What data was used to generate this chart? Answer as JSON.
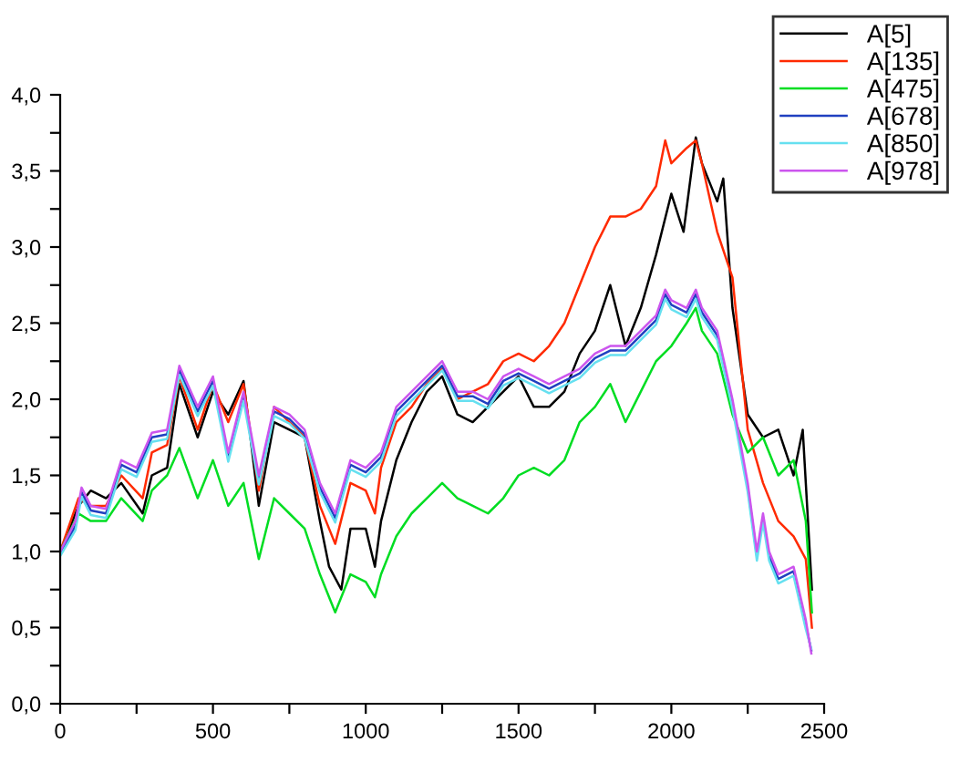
{
  "chart_data": {
    "type": "line",
    "xlim": [
      0,
      2500
    ],
    "ylim": [
      0,
      4
    ],
    "xticks": [
      0,
      {
        "value": 250,
        "label": null
      },
      500,
      {
        "value": 750,
        "label": null
      },
      1000,
      {
        "value": 1250,
        "label": null
      },
      1500,
      {
        "value": 1750,
        "label": null
      },
      2000,
      {
        "value": 2250,
        "label": null
      },
      2500
    ],
    "yticks": [
      {
        "value": 0,
        "label": "0,0"
      },
      {
        "value": 0.25,
        "label": null
      },
      {
        "value": 0.5,
        "label": "0,5"
      },
      {
        "value": 0.75,
        "label": null
      },
      {
        "value": 1,
        "label": "1,0"
      },
      {
        "value": 1.25,
        "label": null
      },
      {
        "value": 1.5,
        "label": "1,5"
      },
      {
        "value": 1.75,
        "label": null
      },
      {
        "value": 2,
        "label": "2,0"
      },
      {
        "value": 2.25,
        "label": null
      },
      {
        "value": 2.5,
        "label": "2,5"
      },
      {
        "value": 2.75,
        "label": null
      },
      {
        "value": 3,
        "label": "3,0"
      },
      {
        "value": 3.25,
        "label": null
      },
      {
        "value": 3.5,
        "label": "3,5"
      },
      {
        "value": 3.75,
        "label": null
      },
      {
        "value": 4,
        "label": "4,0"
      }
    ],
    "grid": false,
    "legend": "top right",
    "marker": "none",
    "line_style": "solid",
    "series": [
      {
        "name": "A[5]",
        "color": "#000000",
        "x": [
          0,
          60,
          100,
          150,
          200,
          270,
          300,
          350,
          390,
          450,
          500,
          550,
          600,
          650,
          700,
          750,
          800,
          850,
          880,
          920,
          950,
          1000,
          1030,
          1050,
          1100,
          1150,
          1200,
          1250,
          1300,
          1350,
          1400,
          1450,
          1500,
          1550,
          1600,
          1650,
          1700,
          1750,
          1800,
          1850,
          1900,
          1950,
          2000,
          2040,
          2080,
          2100,
          2150,
          2170,
          2200,
          2250,
          2300,
          2350,
          2400,
          2430,
          2460
        ],
        "values": [
          1.0,
          1.3,
          1.4,
          1.35,
          1.45,
          1.25,
          1.5,
          1.55,
          2.1,
          1.75,
          2.05,
          1.9,
          2.12,
          1.3,
          1.85,
          1.8,
          1.75,
          1.2,
          0.9,
          0.75,
          1.15,
          1.15,
          0.9,
          1.2,
          1.6,
          1.85,
          2.05,
          2.15,
          1.9,
          1.85,
          1.95,
          2.05,
          2.15,
          1.95,
          1.95,
          2.05,
          2.3,
          2.45,
          2.75,
          2.35,
          2.6,
          2.95,
          3.35,
          3.1,
          3.72,
          3.55,
          3.3,
          3.45,
          2.6,
          1.9,
          1.75,
          1.8,
          1.5,
          1.8,
          0.75
        ]
      },
      {
        "name": "A[135]",
        "color": "#ff2a00",
        "x": [
          0,
          60,
          100,
          150,
          200,
          270,
          300,
          350,
          390,
          450,
          500,
          550,
          600,
          650,
          700,
          750,
          800,
          850,
          900,
          950,
          1000,
          1030,
          1050,
          1100,
          1150,
          1200,
          1250,
          1300,
          1350,
          1400,
          1450,
          1500,
          1550,
          1600,
          1650,
          1700,
          1750,
          1800,
          1850,
          1900,
          1950,
          1980,
          2000,
          2050,
          2080,
          2100,
          2150,
          2200,
          2250,
          2300,
          2350,
          2400,
          2440,
          2460
        ],
        "values": [
          1.0,
          1.35,
          1.3,
          1.3,
          1.5,
          1.35,
          1.65,
          1.7,
          2.15,
          1.8,
          2.1,
          1.85,
          2.1,
          1.4,
          1.95,
          1.85,
          1.75,
          1.3,
          1.05,
          1.45,
          1.4,
          1.25,
          1.55,
          1.85,
          1.95,
          2.1,
          2.2,
          2.0,
          2.05,
          2.1,
          2.25,
          2.3,
          2.25,
          2.35,
          2.5,
          2.75,
          3.0,
          3.2,
          3.2,
          3.25,
          3.4,
          3.7,
          3.55,
          3.65,
          3.7,
          3.55,
          3.1,
          2.8,
          1.8,
          1.45,
          1.2,
          1.1,
          0.95,
          0.5
        ]
      },
      {
        "name": "A[475]",
        "color": "#00dd22",
        "x": [
          0,
          60,
          100,
          150,
          200,
          270,
          300,
          350,
          390,
          450,
          500,
          550,
          600,
          650,
          700,
          750,
          800,
          850,
          900,
          950,
          1000,
          1030,
          1050,
          1100,
          1150,
          1200,
          1250,
          1300,
          1350,
          1400,
          1450,
          1500,
          1550,
          1600,
          1650,
          1700,
          1750,
          1800,
          1850,
          1900,
          1950,
          2000,
          2050,
          2080,
          2100,
          2150,
          2200,
          2250,
          2300,
          2350,
          2400,
          2440,
          2460
        ],
        "values": [
          1.0,
          1.25,
          1.2,
          1.2,
          1.35,
          1.2,
          1.4,
          1.5,
          1.68,
          1.35,
          1.6,
          1.3,
          1.45,
          0.95,
          1.35,
          1.25,
          1.15,
          0.85,
          0.6,
          0.85,
          0.8,
          0.7,
          0.85,
          1.1,
          1.25,
          1.35,
          1.45,
          1.35,
          1.3,
          1.25,
          1.35,
          1.5,
          1.55,
          1.5,
          1.6,
          1.85,
          1.95,
          2.1,
          1.85,
          2.05,
          2.25,
          2.35,
          2.5,
          2.6,
          2.45,
          2.3,
          1.9,
          1.65,
          1.75,
          1.5,
          1.6,
          1.2,
          0.6
        ]
      },
      {
        "name": "A[678]",
        "color": "#2040c0",
        "x": [
          0,
          50,
          70,
          100,
          150,
          200,
          250,
          300,
          350,
          390,
          450,
          500,
          550,
          600,
          650,
          700,
          750,
          800,
          850,
          900,
          950,
          1000,
          1050,
          1100,
          1150,
          1200,
          1250,
          1300,
          1350,
          1400,
          1450,
          1500,
          1550,
          1600,
          1650,
          1700,
          1750,
          1800,
          1850,
          1900,
          1950,
          1980,
          2000,
          2050,
          2080,
          2100,
          2150,
          2200,
          2250,
          2280,
          2300,
          2320,
          2350,
          2400,
          2440,
          2458
        ],
        "values": [
          0.98,
          1.17,
          1.39,
          1.27,
          1.25,
          1.57,
          1.52,
          1.75,
          1.77,
          2.19,
          1.92,
          2.12,
          1.62,
          2.02,
          1.47,
          1.92,
          1.87,
          1.77,
          1.42,
          1.22,
          1.57,
          1.52,
          1.62,
          1.92,
          2.02,
          2.12,
          2.22,
          2.02,
          2.02,
          1.97,
          2.12,
          2.17,
          2.12,
          2.07,
          2.12,
          2.17,
          2.27,
          2.32,
          2.32,
          2.42,
          2.52,
          2.69,
          2.62,
          2.57,
          2.69,
          2.57,
          2.42,
          1.97,
          1.42,
          0.97,
          1.22,
          0.97,
          0.82,
          0.87,
          0.52,
          0.35
        ]
      },
      {
        "name": "A[850]",
        "color": "#66e0f0",
        "x": [
          0,
          50,
          70,
          100,
          150,
          200,
          250,
          300,
          350,
          390,
          450,
          500,
          550,
          600,
          650,
          700,
          750,
          800,
          850,
          900,
          950,
          1000,
          1050,
          1100,
          1150,
          1200,
          1250,
          1300,
          1350,
          1400,
          1450,
          1500,
          1550,
          1600,
          1650,
          1700,
          1750,
          1800,
          1850,
          1900,
          1950,
          1980,
          2000,
          2050,
          2080,
          2100,
          2150,
          2200,
          2250,
          2280,
          2300,
          2320,
          2350,
          2400,
          2440,
          2458
        ],
        "values": [
          0.97,
          1.14,
          1.36,
          1.24,
          1.22,
          1.54,
          1.49,
          1.72,
          1.74,
          2.16,
          1.89,
          2.09,
          1.59,
          1.99,
          1.44,
          1.89,
          1.84,
          1.74,
          1.39,
          1.19,
          1.54,
          1.49,
          1.59,
          1.89,
          1.99,
          2.09,
          2.19,
          1.99,
          1.99,
          1.94,
          2.09,
          2.14,
          2.09,
          2.04,
          2.09,
          2.14,
          2.24,
          2.29,
          2.29,
          2.39,
          2.49,
          2.66,
          2.59,
          2.54,
          2.66,
          2.54,
          2.39,
          1.94,
          1.39,
          0.94,
          1.19,
          0.94,
          0.79,
          0.84,
          0.49,
          0.36
        ]
      },
      {
        "name": "A[978]",
        "color": "#cc55ee",
        "x": [
          0,
          50,
          70,
          100,
          150,
          200,
          250,
          300,
          350,
          390,
          450,
          500,
          550,
          600,
          650,
          700,
          750,
          800,
          850,
          900,
          950,
          1000,
          1050,
          1100,
          1150,
          1200,
          1250,
          1300,
          1350,
          1400,
          1450,
          1500,
          1550,
          1600,
          1650,
          1700,
          1750,
          1800,
          1850,
          1900,
          1950,
          1980,
          2000,
          2050,
          2080,
          2100,
          2150,
          2200,
          2250,
          2280,
          2300,
          2320,
          2350,
          2400,
          2440,
          2458
        ],
        "values": [
          1.0,
          1.2,
          1.42,
          1.3,
          1.28,
          1.6,
          1.55,
          1.78,
          1.8,
          2.22,
          1.95,
          2.15,
          1.65,
          2.05,
          1.5,
          1.95,
          1.9,
          1.8,
          1.45,
          1.25,
          1.6,
          1.55,
          1.65,
          1.95,
          2.05,
          2.15,
          2.25,
          2.05,
          2.05,
          2.0,
          2.15,
          2.2,
          2.15,
          2.1,
          2.15,
          2.2,
          2.3,
          2.35,
          2.35,
          2.45,
          2.55,
          2.72,
          2.65,
          2.6,
          2.72,
          2.6,
          2.45,
          2.0,
          1.45,
          1.0,
          1.25,
          1.0,
          0.85,
          0.9,
          0.55,
          0.33
        ]
      }
    ]
  }
}
